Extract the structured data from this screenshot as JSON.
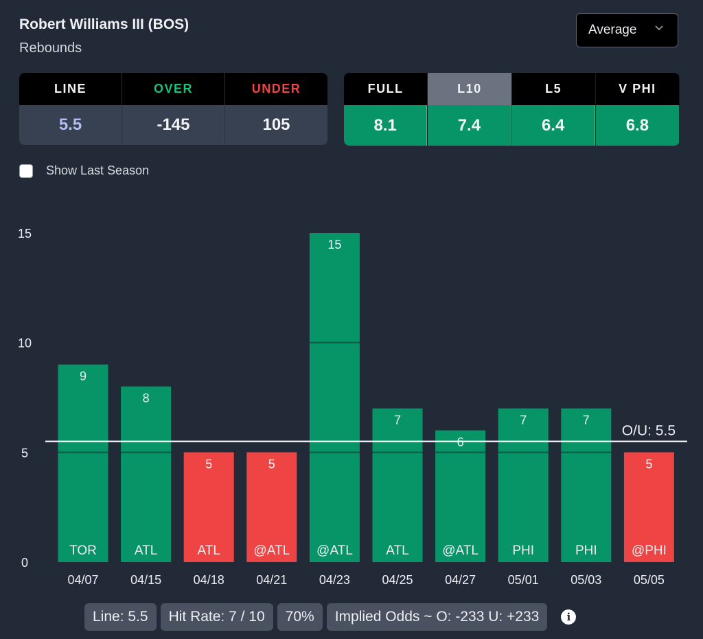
{
  "header": {
    "player": "Robert Williams III (BOS)",
    "stat": "Rebounds",
    "dropdown": {
      "selected": "Average",
      "icon": "chevron-down-icon"
    }
  },
  "odds_table": {
    "columns": [
      {
        "label": "LINE",
        "value": "5.5",
        "label_color": "#f2f3f5",
        "value_color": "#b4bdf0"
      },
      {
        "label": "OVER",
        "value": "-145",
        "label_color": "#1fbf7f",
        "value_color": "#f2f3f5"
      },
      {
        "label": "UNDER",
        "value": "105",
        "label_color": "#ef4444",
        "value_color": "#f2f3f5"
      }
    ]
  },
  "averages_table": {
    "active": "L10",
    "columns": [
      {
        "label": "FULL",
        "value": "8.1"
      },
      {
        "label": "L10",
        "value": "7.4"
      },
      {
        "label": "L5",
        "value": "6.4"
      },
      {
        "label": "V PHI",
        "value": "6.8"
      }
    ]
  },
  "show_last_season": {
    "label": "Show Last Season",
    "checked": false
  },
  "colors": {
    "over": "#079467",
    "under": "#ef4444",
    "background": "#222a38"
  },
  "chart_data": {
    "type": "bar",
    "title": "",
    "xlabel": "",
    "ylabel": "",
    "ylim": [
      0,
      15
    ],
    "yticks": [
      0,
      5,
      10,
      15
    ],
    "categories": [
      "04/07",
      "04/15",
      "04/18",
      "04/21",
      "04/23",
      "04/25",
      "04/27",
      "05/01",
      "05/03",
      "05/05"
    ],
    "opponents": [
      "TOR",
      "ATL",
      "ATL",
      "@ATL",
      "@ATL",
      "ATL",
      "@ATL",
      "PHI",
      "PHI",
      "@PHI"
    ],
    "values": [
      9,
      8,
      5,
      5,
      15,
      7,
      6,
      7,
      7,
      5
    ],
    "line": {
      "value": 5.5,
      "label": "O/U: 5.5"
    },
    "grid": false
  },
  "summary": {
    "pills": [
      "Line: 5.5",
      "Hit Rate: 7 / 10",
      "70%",
      "Implied Odds ~ O: -233 U: +233"
    ],
    "info_icon": "i"
  }
}
